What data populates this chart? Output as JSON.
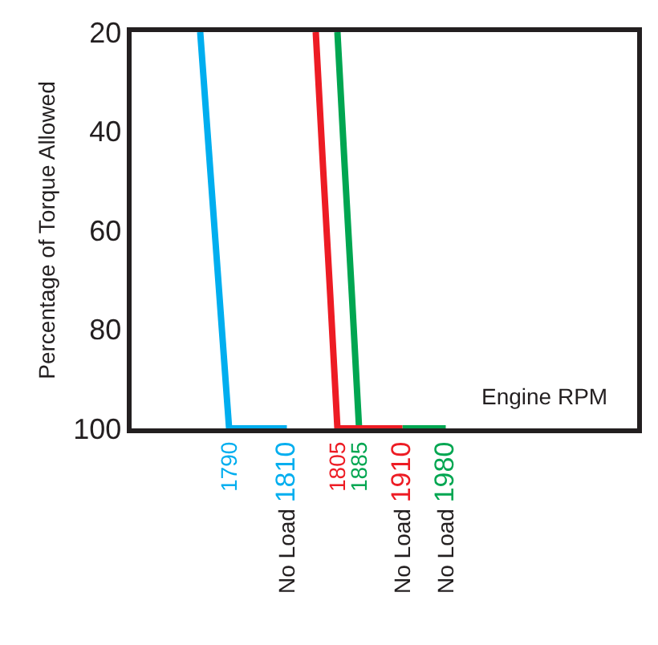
{
  "chart_data": {
    "type": "line",
    "xlabel": "Engine RPM",
    "ylabel": "Percentage of Torque Allowed",
    "categories": [
      null,
      null,
      null,
      null,
      null,
      null,
      null,
      null,
      null,
      null,
      null,
      null,
      null,
      "1790",
      null,
      null,
      null,
      null,
      null,
      null,
      null,
      "No Load 1810",
      null,
      null,
      null,
      null,
      null,
      null,
      "1805",
      null,
      null,
      "1885",
      null,
      null,
      null,
      null,
      null,
      "No Load 1910",
      null,
      null,
      null,
      null,
      null,
      "No Load 1980",
      null,
      null,
      null,
      null,
      null,
      null,
      null,
      null,
      null,
      null,
      null,
      null,
      null,
      null,
      null,
      null,
      null,
      null,
      null,
      null,
      null,
      null,
      null,
      null,
      null,
      null
    ],
    "series": [
      {
        "color": "#00aeef",
        "values": [
          null,
          null,
          null,
          null,
          null,
          null,
          null,
          null,
          null,
          20,
          40,
          60,
          80,
          100,
          100,
          100,
          100,
          100,
          100,
          100,
          100,
          100,
          null,
          null,
          null,
          null,
          null,
          null,
          null,
          null,
          null,
          null,
          null,
          null,
          null,
          null,
          null,
          null,
          null,
          null,
          null,
          null,
          null,
          null,
          null,
          null,
          null,
          null,
          null,
          null,
          null,
          null,
          null,
          null,
          null,
          null,
          null,
          null,
          null,
          null,
          null,
          null,
          null,
          null,
          null,
          null,
          null,
          null,
          null,
          null
        ]
      },
      {
        "color": "#00a651",
        "values": [
          null,
          null,
          null,
          null,
          null,
          null,
          null,
          null,
          null,
          null,
          null,
          null,
          null,
          null,
          null,
          null,
          null,
          null,
          null,
          null,
          null,
          null,
          null,
          null,
          null,
          null,
          null,
          null,
          20,
          47,
          73,
          100,
          null,
          null,
          null,
          null,
          null,
          100,
          100,
          100,
          100,
          100,
          100,
          100,
          null,
          null,
          null,
          null,
          null,
          null,
          null,
          null,
          null,
          null,
          null,
          null,
          null,
          null,
          null,
          null,
          null,
          null,
          null,
          null,
          null,
          null,
          null,
          null,
          null,
          null
        ]
      },
      {
        "color": "#ed1c24",
        "values": [
          null,
          null,
          null,
          null,
          null,
          null,
          null,
          null,
          null,
          null,
          null,
          null,
          null,
          null,
          null,
          null,
          null,
          null,
          null,
          null,
          null,
          null,
          null,
          null,
          null,
          20,
          47,
          73,
          100,
          100,
          100,
          100,
          100,
          100,
          100,
          100,
          100,
          100,
          null,
          null,
          null,
          null,
          null,
          null,
          null,
          null,
          null,
          null,
          null,
          null,
          null,
          null,
          null,
          null,
          null,
          null,
          null,
          null,
          null,
          null,
          null,
          null,
          null,
          null,
          null,
          null,
          null,
          null,
          null,
          null
        ]
      }
    ],
    "ylim": [
      100,
      20
    ],
    "yticks": [
      20,
      40,
      60,
      80,
      100
    ],
    "marker": "none",
    "line_style": "solid"
  }
}
